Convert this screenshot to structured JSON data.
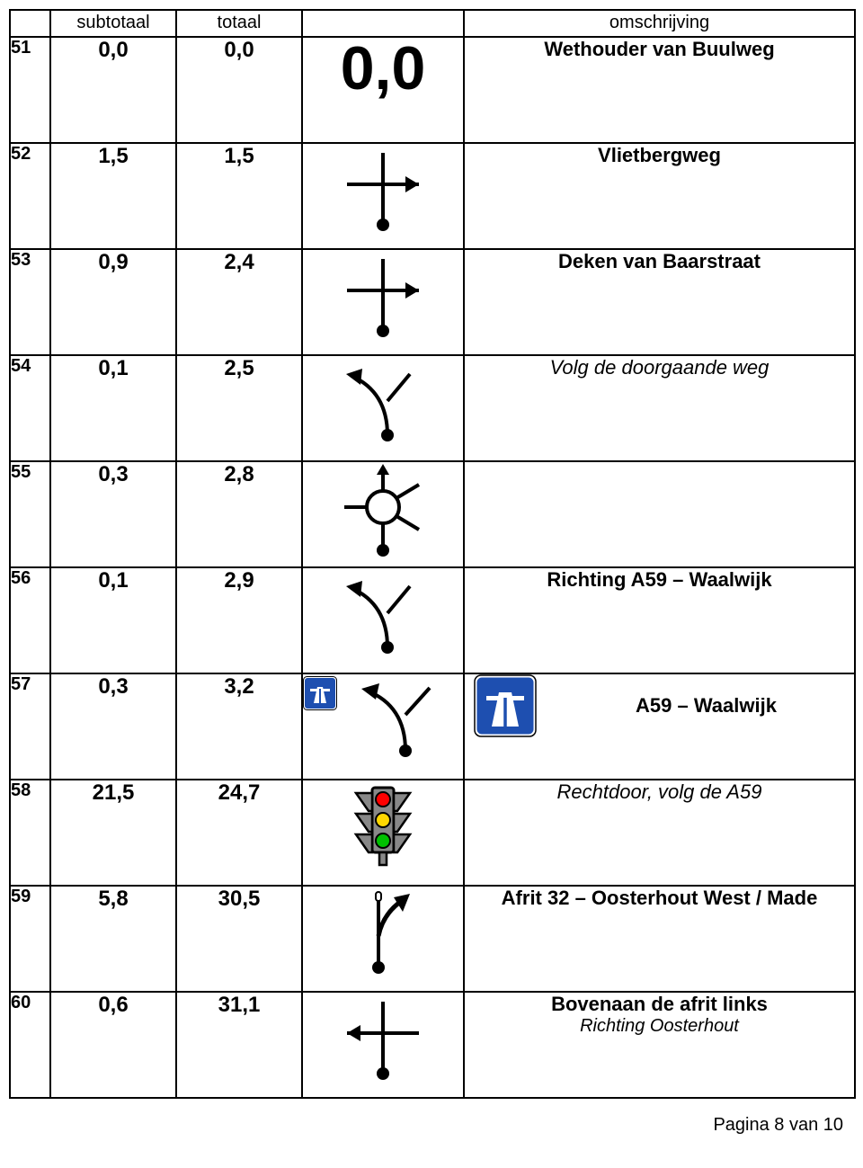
{
  "headers": {
    "num": "",
    "sub": "subtotaal",
    "tot": "totaal",
    "sym": "",
    "desc": "omschrijving"
  },
  "rows": [
    {
      "num": "51",
      "sub": "0,0",
      "tot": "0,0",
      "symbol": "bigzero",
      "symbol_text": "0,0",
      "desc": "Wethouder van Buulweg",
      "desc_style": "bold"
    },
    {
      "num": "52",
      "sub": "1,5",
      "tot": "1,5",
      "symbol": "cross-right",
      "desc": "Vlietbergweg",
      "desc_style": "bold"
    },
    {
      "num": "53",
      "sub": "0,9",
      "tot": "2,4",
      "symbol": "cross-right",
      "desc": "Deken van Baarstraat",
      "desc_style": "bold"
    },
    {
      "num": "54",
      "sub": "0,1",
      "tot": "2,5",
      "symbol": "fork-left",
      "desc": "Volg de doorgaande weg",
      "desc_style": "italic"
    },
    {
      "num": "55",
      "sub": "0,3",
      "tot": "2,8",
      "symbol": "roundabout",
      "desc": "",
      "desc_style": "bold"
    },
    {
      "num": "56",
      "sub": "0,1",
      "tot": "2,9",
      "symbol": "fork-left",
      "desc": "Richting A59 – Waalwijk",
      "desc_style": "bold"
    },
    {
      "num": "57",
      "sub": "0,3",
      "tot": "3,2",
      "symbol": "motorway-entry",
      "desc": "A59 – Waalwijk",
      "desc_style": "bold",
      "desc_icon": "motorway-large"
    },
    {
      "num": "58",
      "sub": "21,5",
      "tot": "24,7",
      "symbol": "traffic-light",
      "desc": "Rechtdoor, volg de A59",
      "desc_style": "italic"
    },
    {
      "num": "59",
      "sub": "5,8",
      "tot": "30,5",
      "symbol": "exit-right",
      "desc": "Afrit 32 – Oosterhout West / Made",
      "desc_style": "bold"
    },
    {
      "num": "60",
      "sub": "0,6",
      "tot": "31,1",
      "symbol": "cross-left",
      "desc": "Bovenaan de afrit links",
      "desc_style": "bold",
      "desc_extra": "Richting Oosterhout"
    }
  ],
  "footer": "Pagina 8 van 10",
  "colors": {
    "border": "#000000",
    "motorway_bg": "#1e4fb0",
    "motorway_border": "#ffffff",
    "light_red": "#ff0000",
    "light_yellow": "#ffd700",
    "light_green": "#00c000",
    "light_body": "#888888",
    "light_outline": "#000000"
  }
}
